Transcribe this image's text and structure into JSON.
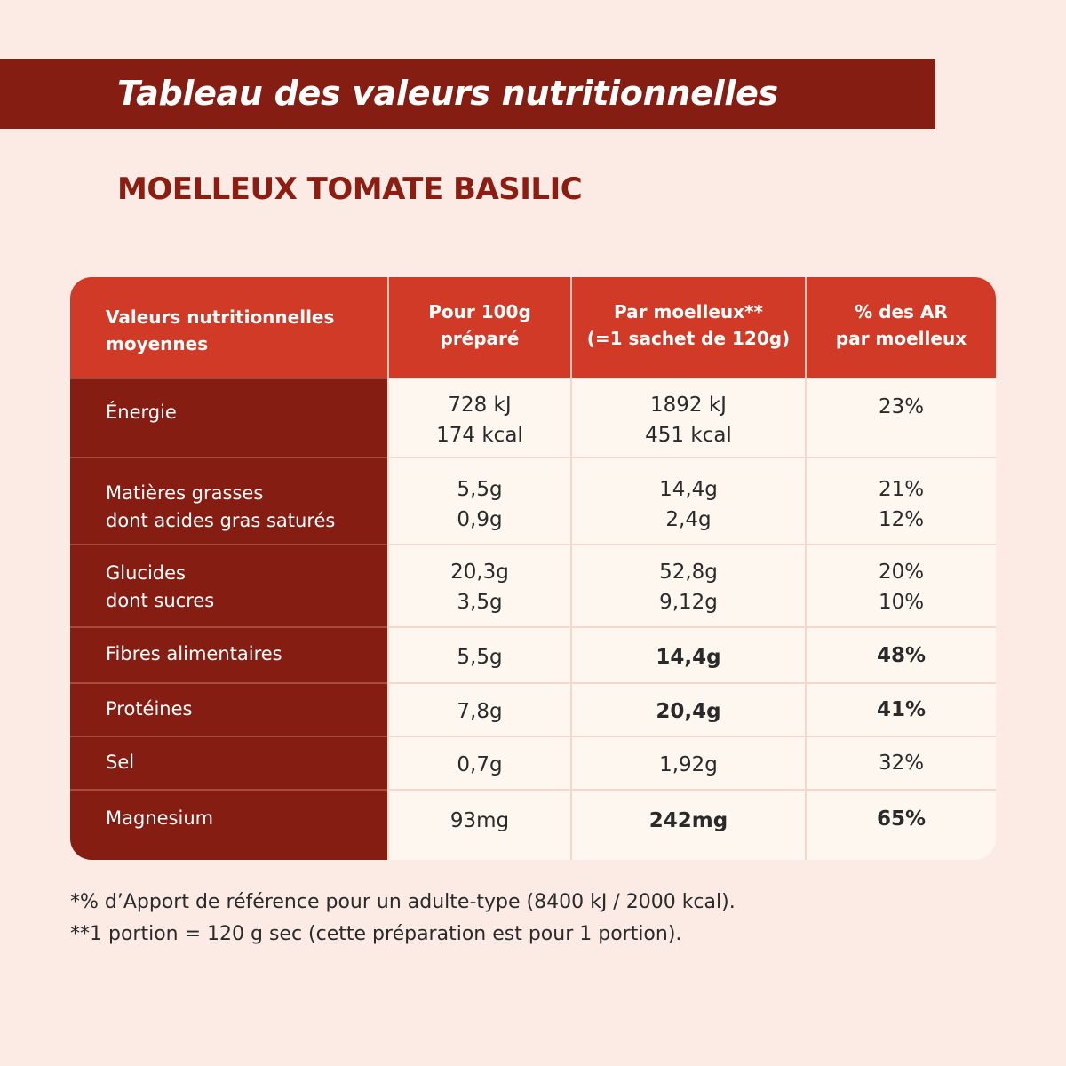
{
  "header": {
    "title": "Tableau des valeurs nutritionnelles",
    "product": "MOELLEUX TOMATE BASILIC"
  },
  "table": {
    "columns": [
      [
        "Valeurs nutritionnelles",
        "moyennes"
      ],
      [
        "Pour 100g",
        "préparé"
      ],
      [
        "Par moelleux**",
        "(=1 sachet de 120g)"
      ],
      [
        "% des AR",
        "par moelleux"
      ]
    ],
    "rows": [
      {
        "label": [
          "Énergie"
        ],
        "per100": [
          "728 kJ",
          "174 kcal"
        ],
        "perPortion": [
          "1892 kJ",
          "451 kcal"
        ],
        "ar": [
          "23%"
        ],
        "bold": false
      },
      {
        "label": [
          "Matières grasses",
          "dont acides gras saturés"
        ],
        "per100": [
          "5,5g",
          "0,9g"
        ],
        "perPortion": [
          "14,4g",
          "2,4g"
        ],
        "ar": [
          "21%",
          "12%"
        ],
        "bold": false
      },
      {
        "label": [
          "Glucides",
          "dont sucres"
        ],
        "per100": [
          "20,3g",
          "3,5g"
        ],
        "perPortion": [
          "52,8g",
          "9,12g"
        ],
        "ar": [
          "20%",
          "10%"
        ],
        "bold": false
      },
      {
        "label": [
          "Fibres alimentaires"
        ],
        "per100": [
          "5,5g"
        ],
        "perPortion": [
          "14,4g"
        ],
        "ar": [
          "48%"
        ],
        "bold": true
      },
      {
        "label": [
          "Protéines"
        ],
        "per100": [
          "7,8g"
        ],
        "perPortion": [
          "20,4g"
        ],
        "ar": [
          "41%"
        ],
        "bold": true
      },
      {
        "label": [
          "Sel"
        ],
        "per100": [
          "0,7g"
        ],
        "perPortion": [
          "1,92g"
        ],
        "ar": [
          "32%"
        ],
        "bold": false
      },
      {
        "label": [
          "Magnesium"
        ],
        "per100": [
          "93mg"
        ],
        "perPortion": [
          "242mg"
        ],
        "ar": [
          "65%"
        ],
        "bold": true
      }
    ]
  },
  "footnotes": [
    "*% d’Apport de référence pour un adulte-type (8400 kJ / 2000 kcal).",
    "**1 portion = 120 g sec (cette préparation est pour 1 portion)."
  ]
}
